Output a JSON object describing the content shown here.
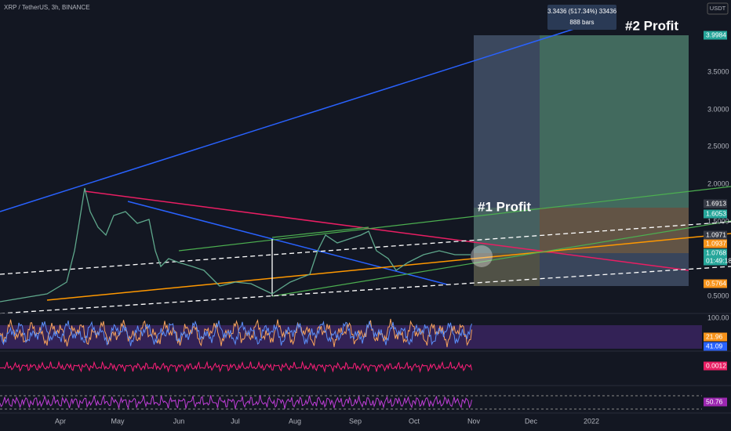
{
  "header": {
    "symbol": "XRP / TetherUS, 3h, BINANCE",
    "currency": "USDT"
  },
  "measure": {
    "change": "3.3436 (517.34%) 33436",
    "bars": "888 bars"
  },
  "annotations": [
    "#2 Profit",
    "#1 Profit"
  ],
  "price_axis": [
    "3.5000",
    "3.0000",
    "2.5000",
    "2.0000",
    "1.5000",
    "0.5000"
  ],
  "price_tags": [
    "3.9984",
    "1.6913",
    "1.6053",
    "1.0971",
    "1.0937",
    "1.0768",
    "01:49:18",
    "0.5764"
  ],
  "indicator_axis": [
    "100.00"
  ],
  "indicator_tags": [
    "21.96",
    "41.09",
    "0.0012",
    "50.76"
  ],
  "time_axis": [
    "Apr",
    "May",
    "Jun",
    "Jul",
    "Aug",
    "Sep",
    "Oct",
    "Nov",
    "Dec",
    "2022"
  ]
}
